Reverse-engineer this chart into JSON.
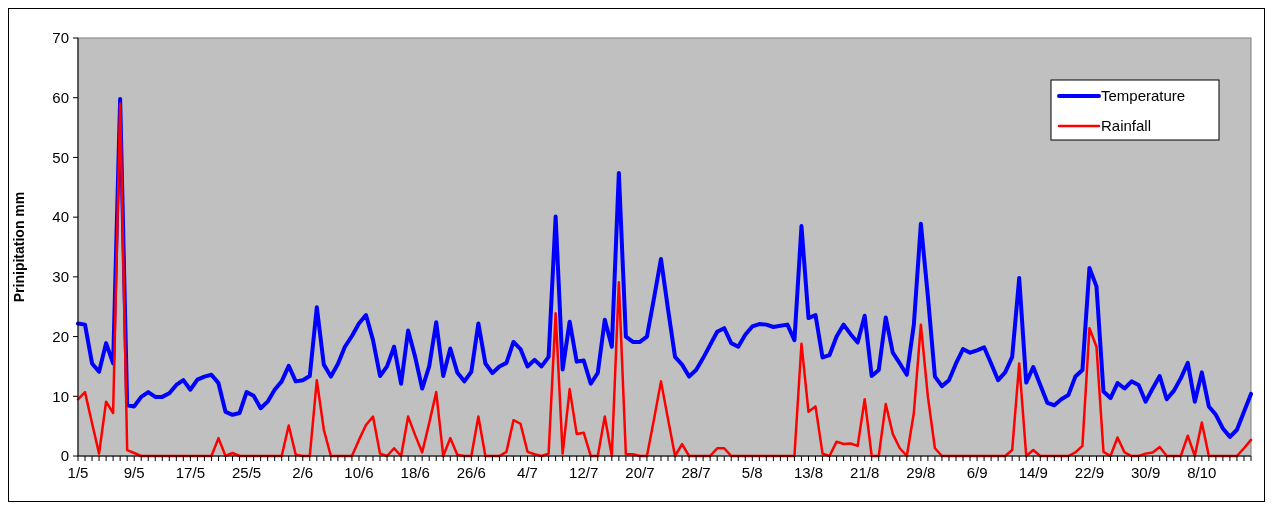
{
  "chart_data": {
    "type": "line",
    "ylabel": "Prinipitation mm",
    "categories": [
      "1/5",
      null,
      null,
      null,
      null,
      null,
      null,
      null,
      "9/5",
      null,
      null,
      null,
      null,
      null,
      null,
      null,
      "17/5",
      null,
      null,
      null,
      null,
      null,
      null,
      null,
      "25/5",
      null,
      null,
      null,
      null,
      null,
      null,
      null,
      "2/6",
      null,
      null,
      null,
      null,
      null,
      null,
      null,
      "10/6",
      null,
      null,
      null,
      null,
      null,
      null,
      null,
      "18/6",
      null,
      null,
      null,
      null,
      null,
      null,
      null,
      "26/6",
      null,
      null,
      null,
      null,
      null,
      null,
      null,
      "4/7",
      null,
      null,
      null,
      null,
      null,
      null,
      null,
      "12/7",
      null,
      null,
      null,
      null,
      null,
      null,
      null,
      "20/7",
      null,
      null,
      null,
      null,
      null,
      null,
      null,
      "28/7",
      null,
      null,
      null,
      null,
      null,
      null,
      null,
      "5/8",
      null,
      null,
      null,
      null,
      null,
      null,
      null,
      "13/8",
      null,
      null,
      null,
      null,
      null,
      null,
      null,
      "21/8",
      null,
      null,
      null,
      null,
      null,
      null,
      null,
      "29/8",
      null,
      null,
      null,
      null,
      null,
      null,
      null,
      "6/9",
      null,
      null,
      null,
      null,
      null,
      null,
      null,
      "14/9",
      null,
      null,
      null,
      null,
      null,
      null,
      null,
      "22/9",
      null,
      null,
      null,
      null,
      null,
      null,
      null,
      "30/9",
      null,
      null,
      null,
      null,
      null,
      null,
      null,
      "8/10",
      null,
      null,
      null,
      null,
      null,
      null,
      null
    ],
    "series": [
      {
        "name": "Temperature",
        "color": "#0000ff",
        "values": [
          22.2,
          22.0,
          15.5,
          14.1,
          18.9,
          15.5,
          59.8,
          8.5,
          8.3,
          9.9,
          10.7,
          9.9,
          9.9,
          10.5,
          11.9,
          12.7,
          11.1,
          12.8,
          13.3,
          13.6,
          12.2,
          7.4,
          6.9,
          7.2,
          10.7,
          10.1,
          8.0,
          9.1,
          11.1,
          12.5,
          15.1,
          12.5,
          12.7,
          13.4,
          24.9,
          15.3,
          13.3,
          15.4,
          18.3,
          20.1,
          22.2,
          23.6,
          19.4,
          13.4,
          15.0,
          18.3,
          12.1,
          21.0,
          16.6,
          11.3,
          15.0,
          22.4,
          13.4,
          18.0,
          14.0,
          12.5,
          14.1,
          22.2,
          15.5,
          13.9,
          15.0,
          15.6,
          19.1,
          17.9,
          15.0,
          16.1,
          15.0,
          16.6,
          40.1,
          14.5,
          22.5,
          15.8,
          16.0,
          12.1,
          13.9,
          22.8,
          18.3,
          47.4,
          20.0,
          19.1,
          19.1,
          20.0,
          26.4,
          33.0,
          24.6,
          16.6,
          15.3,
          13.3,
          14.4,
          16.4,
          18.6,
          20.8,
          21.4,
          18.9,
          18.3,
          20.3,
          21.7,
          22.1,
          22.0,
          21.6,
          21.8,
          22.0,
          19.4,
          38.5,
          23.1,
          23.6,
          16.5,
          16.9,
          20.0,
          22.0,
          20.4,
          19.0,
          23.5,
          13.4,
          14.4,
          23.2,
          17.3,
          15.5,
          13.6,
          22.0,
          38.9,
          26.7,
          13.3,
          11.7,
          12.7,
          15.5,
          17.9,
          17.3,
          17.7,
          18.2,
          15.5,
          12.7,
          14.0,
          16.6,
          29.8,
          12.3,
          14.9,
          11.9,
          8.9,
          8.5,
          9.5,
          10.2,
          13.3,
          14.4,
          31.5,
          28.4,
          10.8,
          9.7,
          12.2,
          11.3,
          12.5,
          11.9,
          9.1,
          11.3,
          13.4,
          9.5,
          10.9,
          13.0,
          15.6,
          9.1,
          14.0,
          8.3,
          6.9,
          4.6,
          3.2,
          4.4,
          7.4,
          10.4
        ]
      },
      {
        "name": "Rainfall",
        "color": "#ff0000",
        "values": [
          9.5,
          10.7,
          5.5,
          0.4,
          9.1,
          7.2,
          59,
          1.0,
          0.5,
          0,
          0,
          0,
          0,
          0,
          0,
          0,
          0,
          0,
          0,
          0,
          3.0,
          0,
          0.5,
          0,
          0,
          0,
          0,
          0,
          0,
          0,
          5.1,
          0.2,
          0,
          0,
          12.7,
          4.4,
          0,
          0,
          0,
          0,
          2.7,
          5.2,
          6.6,
          0.4,
          0,
          1.3,
          0,
          6.6,
          3.5,
          0.6,
          5.5,
          10.7,
          0,
          3.0,
          0.2,
          0,
          0,
          6.6,
          0,
          0,
          0,
          0.7,
          6.0,
          5.4,
          0.7,
          0.3,
          0,
          0.4,
          23.9,
          0.4,
          11.2,
          3.7,
          3.9,
          0,
          0,
          6.6,
          0,
          29.1,
          0.3,
          0.3,
          0,
          0,
          6.1,
          12.5,
          6.2,
          0,
          2.0,
          0,
          0,
          0,
          0,
          1.3,
          1.3,
          0,
          0,
          0,
          0,
          0,
          0,
          0,
          0,
          0,
          0,
          18.8,
          7.4,
          8.3,
          0.4,
          0,
          2.4,
          2.0,
          2.1,
          1.7,
          9.5,
          0,
          0,
          8.7,
          3.7,
          1.3,
          0,
          7.2,
          22.0,
          9.9,
          1.3,
          0,
          0,
          0,
          0,
          0,
          0,
          0,
          0,
          0,
          0,
          1.0,
          15.5,
          0,
          1.0,
          0,
          0,
          0,
          0,
          0,
          0.6,
          1.7,
          21.4,
          18.3,
          0.7,
          0,
          3.1,
          0.6,
          0,
          0,
          0.4,
          0.6,
          1.5,
          0,
          0,
          0,
          3.4,
          0,
          5.6,
          0,
          0,
          0,
          0,
          0,
          1.3,
          2.7
        ]
      }
    ],
    "ylim": [
      0,
      70
    ],
    "yticks": [
      0,
      10,
      20,
      30,
      40,
      50,
      60,
      70
    ],
    "grid": false,
    "legend": "top right",
    "marker": "none",
    "line_style": "solid"
  }
}
